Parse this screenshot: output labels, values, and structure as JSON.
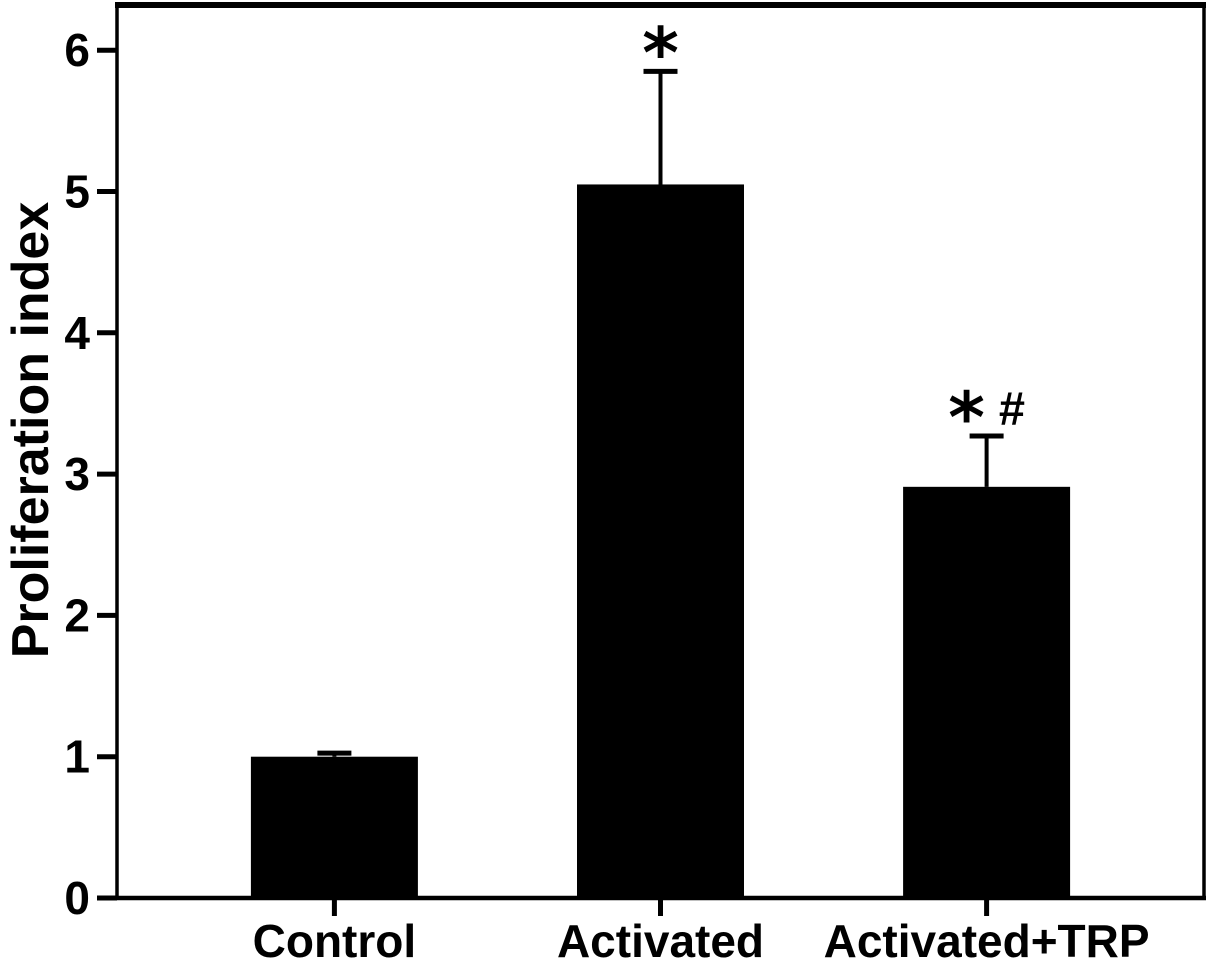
{
  "figure": {
    "background": "#ffffff",
    "bar_color": "#000000",
    "axis_color": "#000000"
  },
  "chart_data": {
    "type": "bar",
    "title": "",
    "xlabel": "",
    "ylabel": "Proliferation index",
    "categories": [
      "Control",
      "Activated",
      "Activated+TRP"
    ],
    "values": [
      1.0,
      5.05,
      2.91
    ],
    "errors": [
      0.025,
      0.8,
      0.36
    ],
    "error_direction": "upper",
    "annotations": [
      "",
      "*",
      "* #"
    ],
    "yticks": [
      0,
      1,
      2,
      3,
      4,
      5,
      6
    ],
    "ylim": [
      0,
      6.32
    ],
    "grid": false,
    "legend": null,
    "frame": "full-box"
  }
}
